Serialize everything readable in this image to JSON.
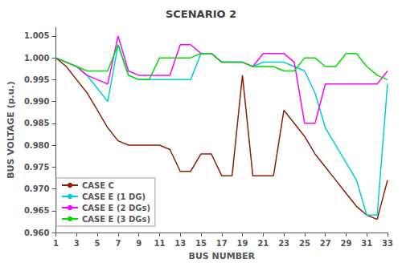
{
  "chart_data": {
    "type": "line",
    "title": "SCENARIO 2",
    "xlabel": "BUS NUMBER",
    "ylabel": "BUS VOLTAGE (p.u.)",
    "x": [
      1,
      2,
      3,
      4,
      5,
      6,
      7,
      8,
      9,
      10,
      11,
      12,
      13,
      14,
      15,
      16,
      17,
      18,
      19,
      20,
      21,
      22,
      23,
      24,
      25,
      26,
      27,
      28,
      29,
      30,
      31,
      32,
      33
    ],
    "series": [
      {
        "name": "CASE C",
        "color": "#8B2000",
        "values": [
          1.0,
          0.998,
          0.995,
          0.992,
          0.988,
          0.984,
          0.981,
          0.98,
          0.98,
          0.98,
          0.98,
          0.979,
          0.974,
          0.974,
          0.978,
          0.978,
          0.973,
          0.973,
          0.996,
          0.973,
          0.973,
          0.973,
          0.988,
          0.985,
          0.982,
          0.978,
          0.975,
          0.972,
          0.969,
          0.966,
          0.964,
          0.963,
          0.972
        ]
      },
      {
        "name": "CASE E (1 DG)",
        "color": "#00CCDD",
        "values": [
          1.0,
          0.999,
          0.998,
          0.996,
          0.993,
          0.99,
          1.003,
          0.996,
          0.995,
          0.995,
          0.995,
          0.995,
          0.995,
          0.995,
          1.001,
          1.001,
          0.999,
          0.999,
          0.999,
          0.998,
          0.999,
          0.999,
          0.999,
          0.998,
          0.997,
          0.992,
          0.984,
          0.98,
          0.976,
          0.972,
          0.964,
          0.964,
          0.994
        ]
      },
      {
        "name": "CASE E (2 DGs)",
        "color": "#FF00FF",
        "values": [
          1.0,
          0.999,
          0.998,
          0.996,
          0.995,
          0.994,
          1.005,
          0.997,
          0.996,
          0.996,
          0.996,
          0.996,
          1.003,
          1.003,
          1.001,
          1.001,
          0.999,
          0.999,
          0.999,
          0.998,
          1.001,
          1.001,
          1.001,
          0.999,
          0.985,
          0.985,
          0.994,
          0.994,
          0.994,
          0.994,
          0.994,
          0.994,
          0.997
        ]
      },
      {
        "name": "CASE E (3 DGs)",
        "color": "#00DD00",
        "values": [
          1.0,
          0.999,
          0.998,
          0.997,
          0.997,
          0.997,
          1.003,
          0.996,
          0.995,
          0.995,
          1.0,
          1.0,
          1.0,
          1.0,
          1.001,
          1.001,
          0.999,
          0.999,
          0.999,
          0.998,
          0.998,
          0.998,
          0.997,
          0.997,
          1.0,
          1.0,
          0.998,
          0.998,
          1.001,
          1.001,
          0.998,
          0.996,
          0.995
        ]
      }
    ],
    "xlim": [
      1,
      33
    ],
    "xticks": [
      1,
      3,
      5,
      7,
      9,
      11,
      13,
      15,
      17,
      19,
      21,
      23,
      25,
      27,
      29,
      31,
      33
    ],
    "ylim": [
      0.96,
      1.007
    ],
    "yticks": [
      {
        "value": 0.96,
        "label": "0.960"
      },
      0.965,
      {
        "value": 0.97,
        "label": "0.970"
      },
      0.975,
      {
        "value": 0.98,
        "label": "0.980"
      },
      0.985,
      {
        "value": 0.99,
        "label": "0.990"
      },
      0.995,
      {
        "value": 1.0,
        "label": "1.000"
      },
      1.005
    ],
    "grid": false,
    "legend": "lower left"
  }
}
